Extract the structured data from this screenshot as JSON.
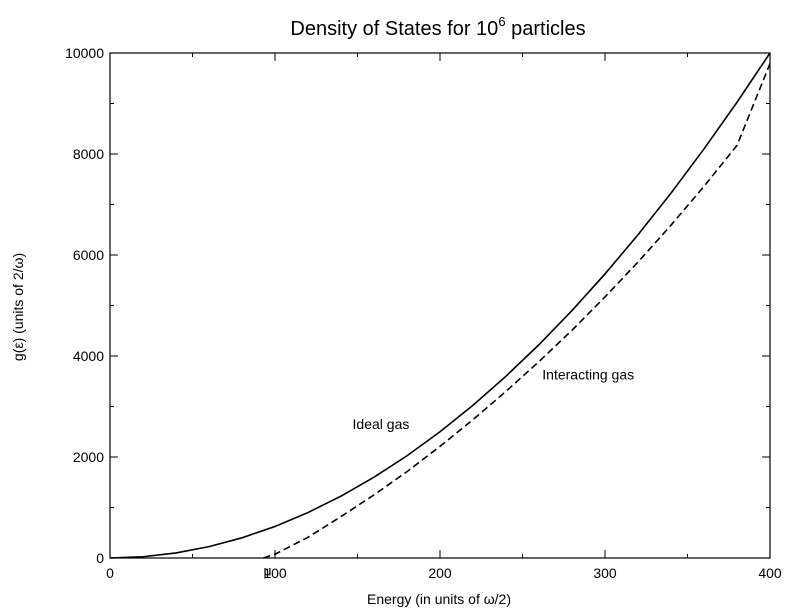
{
  "chart_data": {
    "type": "line",
    "title": "Density of States for 10",
    "title_superscript": "6",
    "title_suffix": " particles",
    "xlabel": "Energy (in units of ω/2)",
    "ylabel": "g(ε)  (units of 2/ω)",
    "xlim": [
      0,
      400
    ],
    "ylim": [
      0,
      10000
    ],
    "xticks": [
      0,
      100,
      200,
      300,
      400
    ],
    "yticks": [
      0,
      2000,
      4000,
      6000,
      8000,
      10000
    ],
    "grid": false,
    "legend": "none",
    "series": [
      {
        "style": "solid",
        "color": "#000000",
        "x": [
          0,
          20,
          40,
          60,
          80,
          100,
          120,
          140,
          160,
          180,
          200,
          220,
          240,
          260,
          280,
          300,
          320,
          340,
          360,
          380,
          400
        ],
        "y": [
          0,
          25,
          100,
          225,
          400,
          625,
          900,
          1225,
          1600,
          2025,
          2500,
          3025,
          3600,
          4225,
          4900,
          5625,
          6400,
          7225,
          8100,
          9025,
          10000
        ]
      },
      {
        "style": "dashed",
        "color": "#000000",
        "x": [
          93,
          100,
          120,
          140,
          160,
          180,
          200,
          220,
          240,
          260,
          280,
          300,
          320,
          340,
          360,
          380,
          400
        ],
        "y": [
          0,
          75,
          410,
          820,
          1250,
          1710,
          2210,
          2740,
          3300,
          3890,
          4510,
          5170,
          5860,
          6590,
          7360,
          8170,
          9790
        ]
      }
    ],
    "annotations": [
      {
        "text": "Ideal gas",
        "x": 147,
        "y": 2550
      },
      {
        "text": "Interacting gas",
        "x": 262,
        "y": 3530
      },
      {
        "text": "μ",
        "x": 93,
        "y": -350
      }
    ]
  }
}
